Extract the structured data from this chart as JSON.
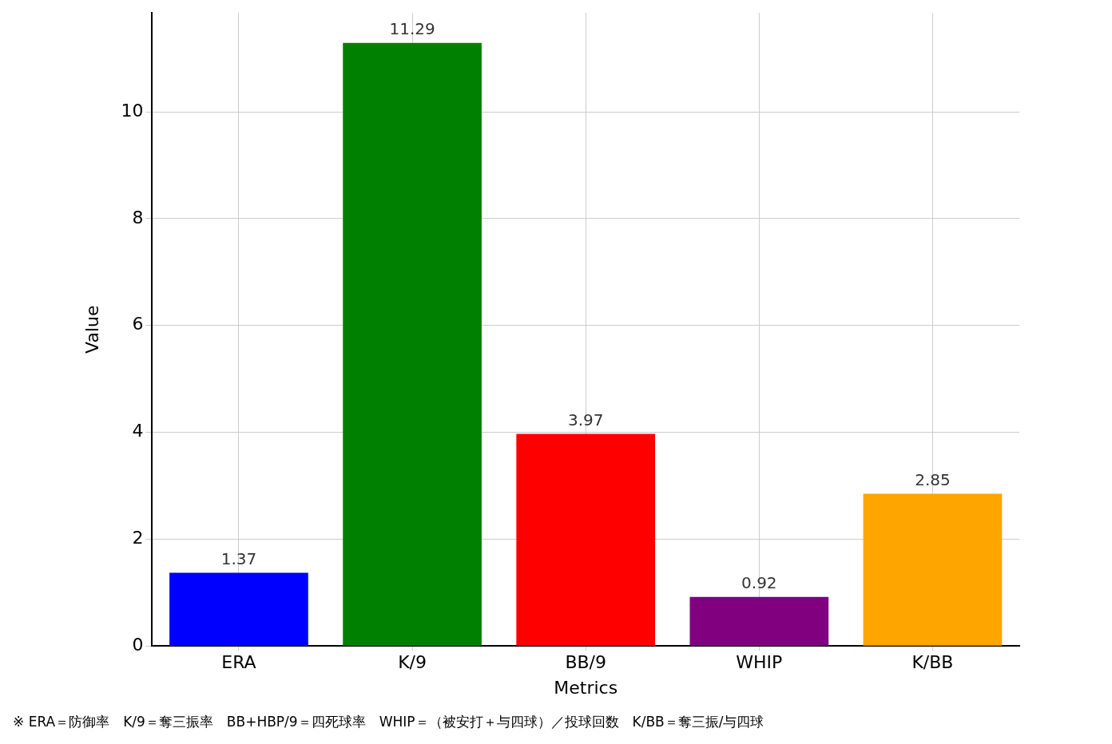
{
  "chart_data": {
    "type": "bar",
    "xlabel": "Metrics",
    "ylabel": "Value",
    "categories": [
      "ERA",
      "K/9",
      "BB/9",
      "WHIP",
      "K/BB"
    ],
    "values": [
      1.37,
      11.29,
      3.97,
      0.92,
      2.85
    ],
    "colors": [
      "#0000ff",
      "#008000",
      "#ff0000",
      "#800080",
      "#ffa500"
    ],
    "ylim": [
      0,
      11.85
    ],
    "yticks": [
      0,
      2,
      4,
      6,
      8,
      10
    ],
    "grid": true,
    "data_labels": true,
    "annotations": [
      "※ ERA＝防御率　K/9＝奪三振率　BB+HBP/9＝四死球率　WHIP＝（被安打＋与四球）／投球回数　K/BB＝奪三振/与四球"
    ]
  }
}
